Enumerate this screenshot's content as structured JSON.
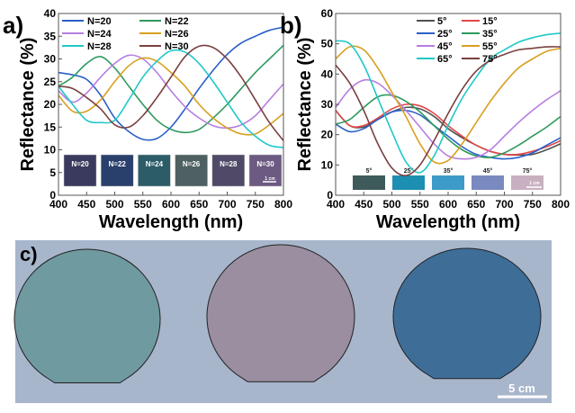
{
  "chart_data": [
    {
      "type": "line",
      "panel_label": "a)",
      "xlabel": "Wavelength (nm)",
      "ylabel": "Reflectance (%)",
      "xlim": [
        400,
        800
      ],
      "ylim": [
        0,
        40
      ],
      "xticks": [
        400,
        450,
        500,
        550,
        600,
        650,
        700,
        750,
        800
      ],
      "yticks": [
        0,
        5,
        10,
        15,
        20,
        25,
        30,
        35,
        40
      ],
      "legend": "top-left",
      "x": [
        400,
        425,
        450,
        475,
        500,
        525,
        550,
        575,
        600,
        625,
        650,
        675,
        700,
        725,
        750,
        775,
        800
      ],
      "series": [
        {
          "name": "N=20",
          "color": "#2a5fc8",
          "values": [
            27,
            26.5,
            25.5,
            22,
            17,
            14,
            12.3,
            12.5,
            15,
            19,
            23.5,
            27.5,
            31,
            33.5,
            35,
            36.3,
            37
          ]
        },
        {
          "name": "N=22",
          "color": "#2e9a5e",
          "values": [
            24,
            26,
            29,
            30.5,
            28,
            24,
            20,
            16.5,
            14.5,
            13.8,
            14.5,
            17,
            20,
            23.5,
            27,
            30,
            33
          ]
        },
        {
          "name": "N=24",
          "color": "#b77ee0",
          "values": [
            23,
            20.5,
            22.5,
            26,
            29,
            30.8,
            30,
            27,
            23,
            19.5,
            17,
            15.3,
            14.8,
            15.5,
            17.5,
            21,
            24.5
          ]
        },
        {
          "name": "N=26",
          "color": "#d8a020",
          "values": [
            22,
            18.5,
            18.5,
            21,
            25,
            28.5,
            30.2,
            29.5,
            27,
            24,
            20,
            17,
            14.8,
            13.5,
            13.5,
            15.5,
            18
          ]
        },
        {
          "name": "N=28",
          "color": "#20c8c8",
          "values": [
            24,
            20,
            16.5,
            16,
            16.5,
            21,
            26,
            29.5,
            31.8,
            31.5,
            29,
            25,
            20.5,
            16,
            13,
            11,
            10.5
          ]
        },
        {
          "name": "N=30",
          "color": "#7a4040",
          "values": [
            24,
            23.5,
            21.5,
            19,
            15.5,
            15,
            17.5,
            21.5,
            26,
            30.5,
            32.8,
            32.5,
            30,
            26,
            21,
            16,
            12
          ]
        }
      ],
      "insets": [
        {
          "label": "N=20",
          "color": "#3a3a5e"
        },
        {
          "label": "N=22",
          "color": "#2a406c"
        },
        {
          "label": "N=24",
          "color": "#2c5c68"
        },
        {
          "label": "N=26",
          "color": "#4e6062"
        },
        {
          "label": "N=28",
          "color": "#504a68"
        },
        {
          "label": "N=30",
          "color": "#6c5a82"
        }
      ],
      "scale_bar": "1 cm"
    },
    {
      "type": "line",
      "panel_label": "b)",
      "xlabel": "Wavelength (nm)",
      "ylabel": "Reflectance (%)",
      "xlim": [
        400,
        800
      ],
      "ylim": [
        0,
        60
      ],
      "xticks": [
        400,
        450,
        500,
        550,
        600,
        650,
        700,
        750,
        800
      ],
      "yticks": [
        0,
        10,
        20,
        30,
        40,
        50,
        60
      ],
      "legend": "top-center",
      "x": [
        400,
        425,
        450,
        475,
        500,
        525,
        550,
        575,
        600,
        625,
        650,
        675,
        700,
        725,
        750,
        775,
        800
      ],
      "series": [
        {
          "name": "5°",
          "color": "#505050",
          "values": [
            28,
            23,
            22.5,
            25,
            27.5,
            29,
            28.5,
            26,
            22,
            19,
            16.5,
            14.5,
            13.5,
            13.3,
            13.5,
            15,
            17
          ]
        },
        {
          "name": "15°",
          "color": "#e04848",
          "values": [
            28,
            23,
            23,
            25.5,
            28.5,
            30,
            29.5,
            27,
            23,
            19.5,
            16.5,
            14.5,
            13.5,
            13.5,
            14.5,
            16,
            18
          ]
        },
        {
          "name": "25°",
          "color": "#2a5fc8",
          "values": [
            23.5,
            21,
            22,
            25,
            27.5,
            28,
            26.5,
            23,
            19.5,
            16,
            13.5,
            12.5,
            12,
            12.5,
            14,
            16.5,
            19
          ]
        },
        {
          "name": "35°",
          "color": "#2e9a5e",
          "values": [
            23.5,
            25,
            29,
            32.5,
            33,
            31,
            27.5,
            23,
            18.5,
            15,
            13,
            12.5,
            14,
            16.5,
            19.5,
            22.5,
            26
          ]
        },
        {
          "name": "45°",
          "color": "#b77ee0",
          "values": [
            29,
            35,
            38,
            37,
            33,
            28,
            22.5,
            17,
            13,
            12,
            12.5,
            15,
            19.5,
            24,
            28,
            31.5,
            34.5
          ]
        },
        {
          "name": "55°",
          "color": "#d8a020",
          "values": [
            45,
            49,
            48,
            42,
            34,
            26,
            17,
            11,
            11.5,
            17,
            24,
            31,
            37,
            42,
            45,
            47.5,
            48.5
          ]
        },
        {
          "name": "65°",
          "color": "#20c8c8",
          "values": [
            51,
            50,
            43,
            32,
            21,
            11,
            7.5,
            13,
            23,
            32,
            39,
            45,
            48,
            50.5,
            52,
            53,
            53.5
          ]
        },
        {
          "name": "75°",
          "color": "#7a4040",
          "values": [
            43,
            37,
            28,
            17,
            9,
            6.5,
            10,
            18,
            27,
            35,
            41,
            44.5,
            46.5,
            48,
            48.5,
            49,
            49
          ]
        }
      ],
      "insets": [
        {
          "label": "5°",
          "color": "#3e5a5a"
        },
        {
          "label": "25°",
          "color": "#1c8fb2"
        },
        {
          "label": "35°",
          "color": "#3e9ac8"
        },
        {
          "label": "45°",
          "color": "#7a8ac0"
        },
        {
          "label": "75°",
          "color": "#c8b0c0"
        }
      ],
      "scale_bar": "1 cm"
    }
  ],
  "photo": {
    "panel_label": "c)",
    "background": "#a8b6cc",
    "wafers": [
      "#6e9aa0",
      "#9a8ea0",
      "#3e6e98"
    ],
    "scale_bar": "5 cm"
  }
}
